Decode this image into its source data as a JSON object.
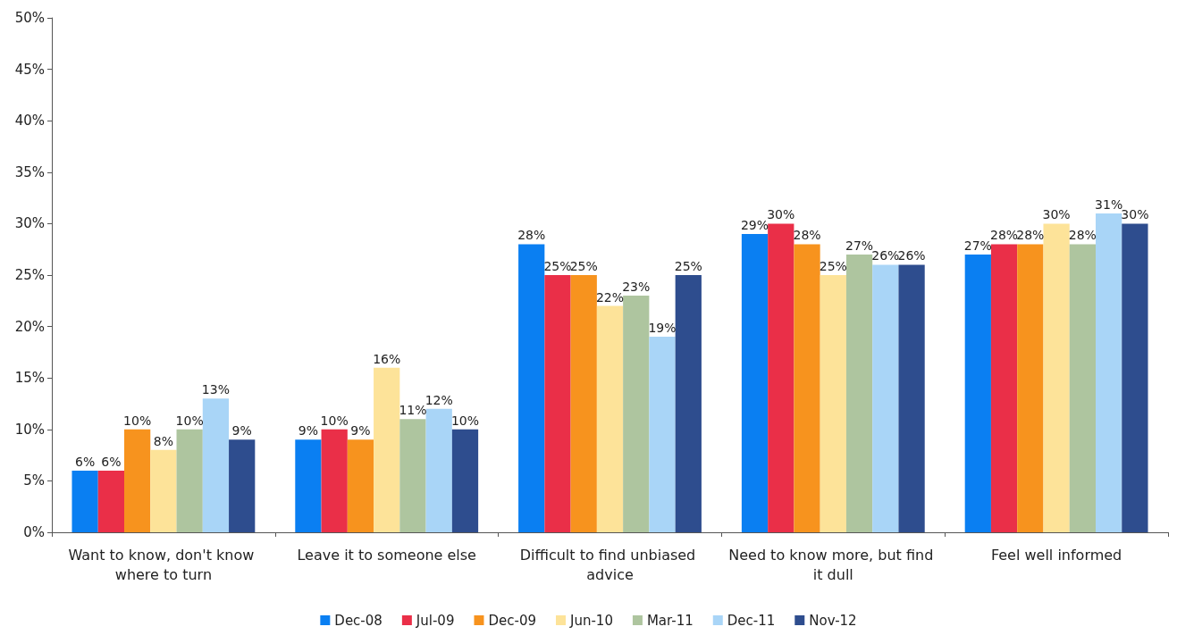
{
  "chart_data": {
    "type": "bar",
    "categories": [
      "Want to know, don't know where to turn",
      "Leave it to someone else",
      "Difficult to find unbiased advice",
      "Need to know more, but find it dull",
      "Feel well informed"
    ],
    "series": [
      {
        "name": "Dec-08",
        "color": "#0a7ff2",
        "values": [
          6,
          9,
          28,
          29,
          27
        ],
        "value_labels": [
          "6%",
          "9%",
          "28%",
          "29%",
          "27%"
        ]
      },
      {
        "name": "Jul-09",
        "color": "#ea2f48",
        "values": [
          6,
          10,
          25,
          30,
          28
        ],
        "value_labels": [
          "6%",
          "10%",
          "25%",
          "30%",
          "28%"
        ]
      },
      {
        "name": "Dec-09",
        "color": "#f7931e",
        "values": [
          10,
          9,
          25,
          28,
          28
        ],
        "value_labels": [
          "10%",
          "9%",
          "25%",
          "28%",
          "28%"
        ]
      },
      {
        "name": "Jun-10",
        "color": "#fde399",
        "values": [
          8,
          16,
          22,
          25,
          30
        ],
        "value_labels": [
          "8%",
          "16%",
          "22%",
          "25%",
          "30%"
        ]
      },
      {
        "name": "Mar-11",
        "color": "#aec59f",
        "values": [
          10,
          11,
          23,
          27,
          28
        ],
        "value_labels": [
          "10%",
          "11%",
          "23%",
          "27%",
          "28%"
        ]
      },
      {
        "name": "Dec-11",
        "color": "#a9d5f7",
        "values": [
          13,
          12,
          19,
          26,
          31
        ],
        "value_labels": [
          "13%",
          "12%",
          "19%",
          "26%",
          "31%"
        ]
      },
      {
        "name": "Nov-12",
        "color": "#2e4d8e",
        "values": [
          9,
          10,
          25,
          26,
          30
        ],
        "value_labels": [
          "9%",
          "10%",
          "25%",
          "26%",
          "30%"
        ]
      }
    ],
    "ylim": [
      0,
      50
    ],
    "yticks": [
      {
        "value": 0,
        "label": "0%"
      },
      {
        "value": 5,
        "label": "5%"
      },
      {
        "value": 10,
        "label": "10%"
      },
      {
        "value": 15,
        "label": "15%"
      },
      {
        "value": 20,
        "label": "20%"
      },
      {
        "value": 25,
        "label": "25%"
      },
      {
        "value": 30,
        "label": "30%"
      },
      {
        "value": 35,
        "label": "35%"
      },
      {
        "value": 40,
        "label": "40%"
      },
      {
        "value": 45,
        "label": "45%"
      },
      {
        "value": 50,
        "label": "50%"
      }
    ],
    "grid": false,
    "legend": "bottom"
  }
}
